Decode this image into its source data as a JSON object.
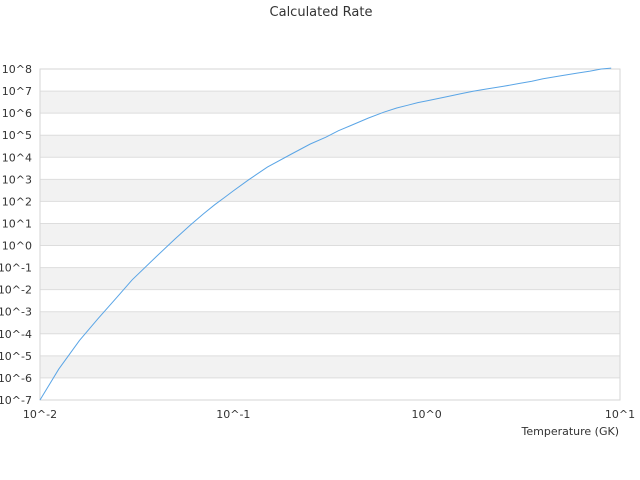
{
  "chart_data": {
    "type": "line",
    "title": "Calculated Rate",
    "xlabel": "Temperature (GK)",
    "ylabel": "",
    "x_scale": "log",
    "y_scale": "log",
    "xlim": [
      0.01,
      10
    ],
    "ylim": [
      1e-07,
      100000000.0
    ],
    "x_ticks": [
      "10^-2",
      "10^-1",
      "10^0",
      "10^1"
    ],
    "y_ticks": [
      "10^-7",
      "10^-6",
      "10^-5",
      "10^-4",
      "10^-3",
      "10^-2",
      "10^-1",
      "10^0",
      "10^1",
      "10^2",
      "10^3",
      "10^4",
      "10^5",
      "10^6",
      "10^7",
      "10^8"
    ],
    "grid": "horizontal bands",
    "colors": {
      "line": "#5aa5e6",
      "band": "#f2f2f2",
      "gridline": "#dddddd"
    },
    "series": [
      {
        "x": [
          0.01,
          0.0125,
          0.016,
          0.02,
          0.025,
          0.03,
          0.04,
          0.05,
          0.06,
          0.07,
          0.08,
          0.09,
          0.1,
          0.12,
          0.15,
          0.2,
          0.25,
          0.3,
          0.35,
          0.4,
          0.5,
          0.6,
          0.7,
          0.8,
          0.9,
          1.0,
          1.25,
          1.5,
          1.75,
          2.0,
          2.5,
          3.0,
          3.5,
          4.0,
          5.0,
          6.0,
          7.0,
          8.0,
          9.0
        ],
        "y": [
          1e-07,
          2.5e-06,
          5e-05,
          0.0005,
          0.0045,
          0.028,
          0.32,
          2.0,
          8.5,
          27,
          70,
          150,
          300,
          950,
          3600,
          14000,
          40000,
          80000,
          160000,
          260000,
          600000,
          1100000,
          1700000,
          2300000,
          3000000,
          3600000,
          5400000,
          7500000,
          10000000,
          12000000,
          16500000,
          22000000,
          28000000,
          36000000,
          50000000,
          65000000,
          80000000,
          100000000,
          110000000
        ]
      }
    ]
  }
}
